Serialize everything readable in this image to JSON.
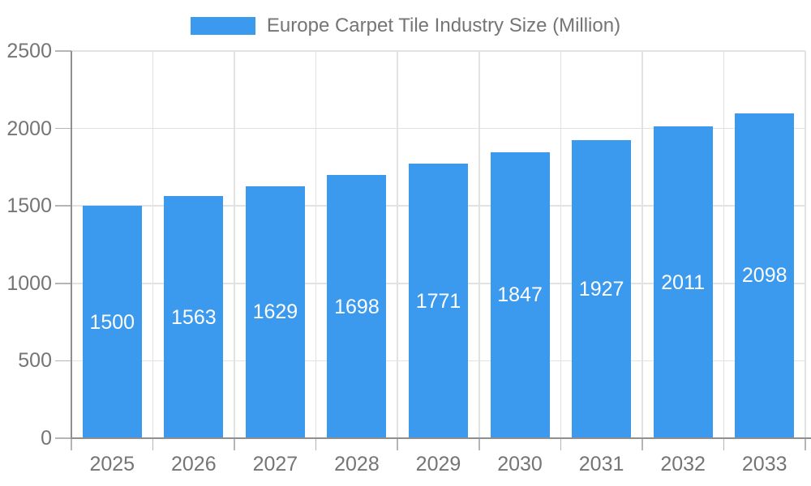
{
  "legend": {
    "label": "Europe Carpet Tile Industry Size (Million)"
  },
  "chart_data": {
    "type": "bar",
    "title": "Europe Carpet Tile Industry Size (Million)",
    "categories": [
      "2025",
      "2026",
      "2027",
      "2028",
      "2029",
      "2030",
      "2031",
      "2032",
      "2033"
    ],
    "values": [
      1500,
      1563,
      1629,
      1698,
      1771,
      1847,
      1927,
      2011,
      2098
    ],
    "series": [
      {
        "name": "Europe Carpet Tile Industry Size (Million)",
        "values": [
          1500,
          1563,
          1629,
          1698,
          1771,
          1847,
          1927,
          2011,
          2098
        ]
      }
    ],
    "xlabel": "",
    "ylabel": "",
    "ylim": [
      0,
      2500
    ],
    "yticks": [
      0,
      500,
      1000,
      1500,
      2000,
      2500
    ],
    "grid": true,
    "legend_position": "top",
    "bar_labels_inside": true,
    "colors": {
      "bar": "#3b99ee",
      "bar_label": "#ffffff",
      "axis_text": "#757575",
      "axis_line": "#8f8f8f",
      "gridline": "#e2e2e2",
      "tick": "#b5b5b5",
      "background": "#ffffff"
    }
  }
}
